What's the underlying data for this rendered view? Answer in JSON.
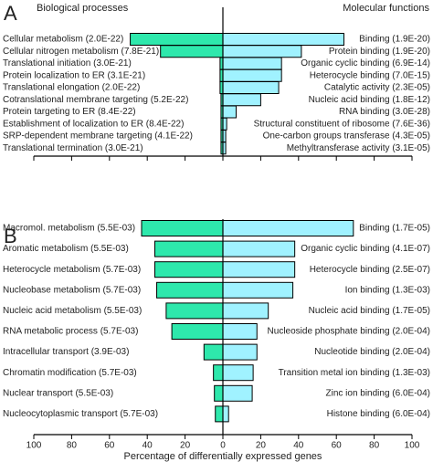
{
  "chart_data": [
    {
      "type": "bar",
      "panel": "A",
      "xlim": [
        0,
        100
      ],
      "xticks": [
        0,
        20,
        40,
        60,
        80,
        100
      ],
      "show_tick_labels": false,
      "series": [
        {
          "name": "Biological processes",
          "side": "left",
          "color": "#2ee8ac",
          "categories": [
            "Cellular metabolism (2.0E-22)",
            "Cellular nitrogen metabolism (7.8E-21)",
            "Translational initiation (3.0E-21)",
            "Protein localization to ER (3.1E-21)",
            "Translational elongation (2.0E-22)",
            "Cotranslational membrane targeting (5.2E-22)",
            "Protein targeting to ER (8.4E-22)",
            "Establishment of localization to ER (8.4E-22)",
            "SRP-dependent membrane targeting (4.1E-22)",
            "Translational termination (3.0E-21)"
          ],
          "values": [
            49,
            33,
            1.5,
            1.5,
            1.5,
            1,
            1,
            1,
            1,
            1
          ]
        },
        {
          "name": "Molecular functions",
          "side": "right",
          "color": "#a0f2ff",
          "categories": [
            "Binding (1.9E-20)",
            "Protein binding (1.9E-20)",
            "Organic cyclic binding (6.9E-14)",
            "Heterocycle binding (7.0E-15)",
            "Catalytic activity (2.3E-05)",
            "Nucleic acid binding (1.8E-12)",
            "RNA binding (3.0E-28)",
            "Structural constituent of ribosome (7.6E-36)",
            "One-carbon groups transferase (4.3E-05)",
            "Methyltransferase activity (3.1E-05)"
          ],
          "values": [
            64,
            41.5,
            31,
            31,
            29.5,
            20,
            7,
            2,
            1.5,
            1.5
          ]
        }
      ]
    },
    {
      "type": "bar",
      "panel": "B",
      "xlim": [
        0,
        100
      ],
      "xticks": [
        0,
        20,
        40,
        60,
        80,
        100
      ],
      "show_tick_labels": true,
      "xlabel": "Percentage of differentially expressed genes",
      "series": [
        {
          "side": "left",
          "color": "#2ee8ac",
          "categories": [
            "Macromol. metabolism (5.5E-03)",
            "Aromatic metabolism (5.5E-03)",
            "Heterocycle metabolism (5.7E-03)",
            "Nucleobase metabolism (5.7E-03)",
            "Nucleic acid metabolism (5.5E-03)",
            "RNA metabolic process (5.7E-03)",
            "Intracellular transport (3.9E-03)",
            "Chromatin modification (5.7E-03)",
            "Nuclear transport (5.5E-03)",
            "Nucleocytoplasmic transport (5.7E-03)"
          ],
          "values": [
            43,
            36,
            36,
            35,
            30,
            27,
            10,
            5,
            4.5,
            4
          ]
        },
        {
          "side": "right",
          "color": "#a0f2ff",
          "categories": [
            "Binding (1.7E-05)",
            "Organic cyclic binding (4.1E-07)",
            "Heterocycle binding (2.5E-07)",
            "Ion binding (1.3E-03)",
            "Nucleic acid binding (1.7E-05)",
            "Nucleoside phosphate binding (2.0E-04)",
            "Nucleotide binding (2.0E-04)",
            "Transition metal ion binding (1.3E-03)",
            "Zinc ion binding (6.0E-04)",
            "Histone binding (6.0E-04)"
          ],
          "values": [
            69,
            38,
            38,
            37,
            24,
            18,
            18,
            16,
            15.5,
            3
          ]
        }
      ]
    }
  ]
}
